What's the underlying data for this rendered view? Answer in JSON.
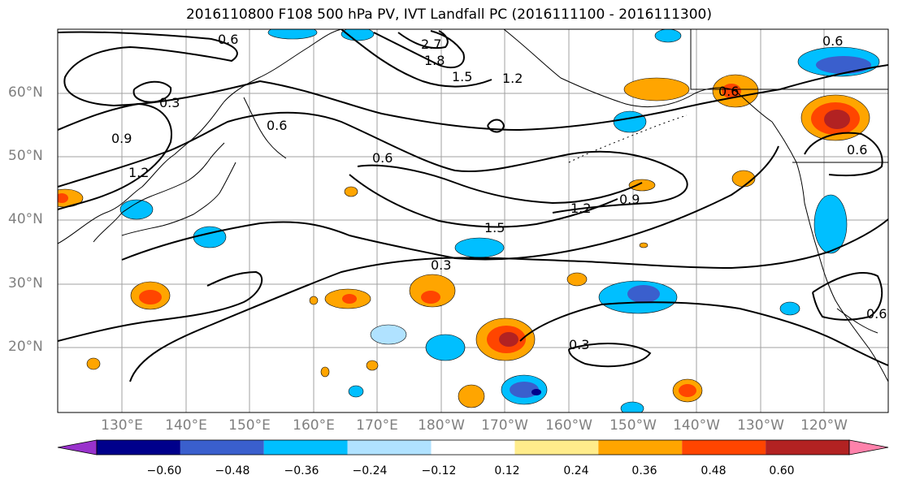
{
  "title": "2016110800 F108 500 hPa PV, IVT Landfall PC (2016111100 - 2016111300)",
  "lat_labels": [
    "60°N",
    "50°N",
    "40°N",
    "30°N",
    "20°N"
  ],
  "lon_labels": [
    "130°E",
    "140°E",
    "150°E",
    "160°E",
    "170°E",
    "180°W",
    "170°W",
    "160°W",
    "150°W",
    "140°W",
    "130°W",
    "120°W"
  ],
  "contour_labels": [
    "0.3",
    "0.9",
    "1.2",
    "0.6",
    "0.6",
    "2.7",
    "1.8",
    "1.5",
    "1.2",
    "1.5",
    "1.2",
    "0.9",
    "0.3",
    "0.3",
    "0.6",
    "0.6",
    "0.6",
    "0.6",
    "0.6"
  ],
  "colorbar": {
    "ticks": [
      "−0.60",
      "−0.48",
      "−0.36",
      "−0.24",
      "−0.12",
      "0.12",
      "0.24",
      "0.36",
      "0.48",
      "0.60"
    ],
    "colors": [
      "#9932CC",
      "#00008B",
      "#3A5FCD",
      "#00BFFF",
      "#B0E2FF",
      "#FFFFFF",
      "#FFEC8B",
      "#FFA500",
      "#FF4500",
      "#B22222",
      "#FF82AB"
    ]
  }
}
